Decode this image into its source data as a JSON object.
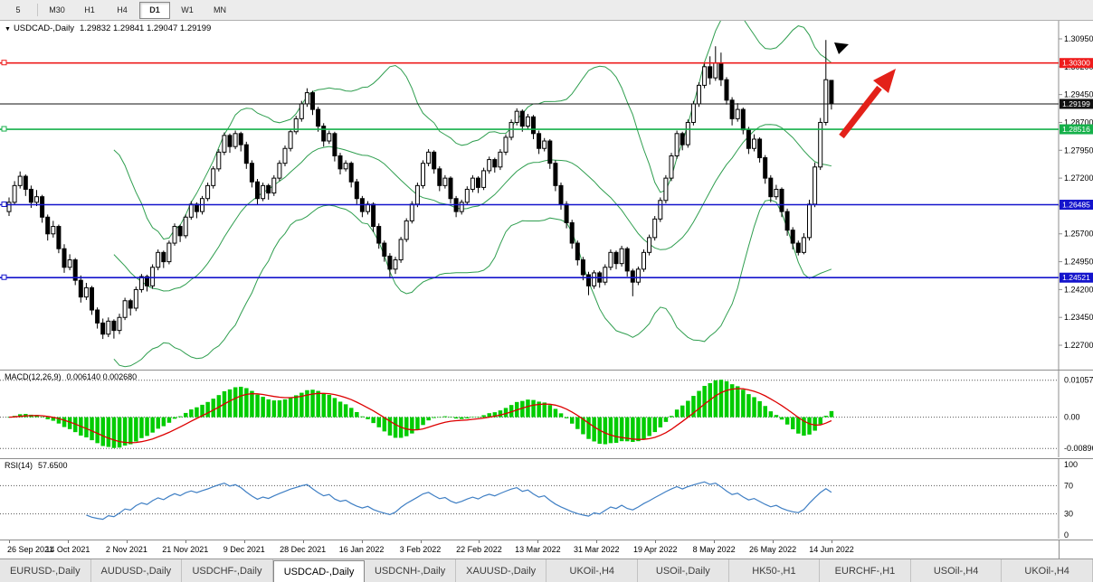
{
  "toolbar": {
    "periods": [
      {
        "label": "5",
        "active": false
      },
      {
        "label": "M30",
        "active": false
      },
      {
        "label": "H1",
        "active": false
      },
      {
        "label": "H4",
        "active": false
      },
      {
        "label": "D1",
        "active": true
      },
      {
        "label": "W1",
        "active": false
      },
      {
        "label": "MN",
        "active": false
      }
    ]
  },
  "chart": {
    "info": {
      "dropdown_icon": "▼",
      "title": "USDCAD-,Daily",
      "ohlc": "1.29832 1.29841 1.29047 1.29199"
    },
    "axis_labels": [
      "1.30950",
      "1.30200",
      "1.29450",
      "1.28700",
      "1.27950",
      "1.27200",
      "1.26450",
      "1.25700",
      "1.24950",
      "1.24200",
      "1.23450",
      "1.22700"
    ],
    "levels": [
      {
        "price": 1.303,
        "label": "1.30300",
        "color": "#ee1c1c"
      },
      {
        "price": 1.29199,
        "label": "1.29199",
        "color": "#111111"
      },
      {
        "price": 1.28516,
        "label": "1.28516",
        "color": "#15b04a"
      },
      {
        "price": 1.26485,
        "label": "1.26485",
        "color": "#1414cc"
      },
      {
        "price": 1.24521,
        "label": "1.24521",
        "color": "#1414cc"
      }
    ]
  },
  "chart_data": {
    "type": "candlestick",
    "symbol": "USDCAD",
    "timeframe": "Daily",
    "title": "USDCAD-,Daily",
    "y_range": [
      1.222,
      1.314
    ],
    "x_labels": [
      "26 Sep 2021",
      "14 Oct 2021",
      "2 Nov 2021",
      "21 Nov 2021",
      "9 Dec 2021",
      "28 Dec 2021",
      "16 Jan 2022",
      "3 Feb 2022",
      "22 Feb 2022",
      "13 Mar 2022",
      "31 Mar 2022",
      "19 Apr 2022",
      "8 May 2022",
      "26 May 2022",
      "14 Jun 2022"
    ],
    "ohlc": [
      [
        1.263,
        1.2668,
        1.2618,
        1.2655
      ],
      [
        1.2655,
        1.2712,
        1.2648,
        1.27
      ],
      [
        1.27,
        1.2738,
        1.2692,
        1.2725
      ],
      [
        1.2725,
        1.273,
        1.2672,
        1.269
      ],
      [
        1.269,
        1.27,
        1.264,
        1.2655
      ],
      [
        1.2655,
        1.2688,
        1.2645,
        1.267
      ],
      [
        1.267,
        1.2675,
        1.26,
        1.2615
      ],
      [
        1.2615,
        1.2622,
        1.2552,
        1.257
      ],
      [
        1.257,
        1.2605,
        1.256,
        1.259
      ],
      [
        1.259,
        1.2595,
        1.2518,
        1.253
      ],
      [
        1.253,
        1.2542,
        1.2465,
        1.248
      ],
      [
        1.248,
        1.2515,
        1.2472,
        1.25
      ],
      [
        1.25,
        1.2505,
        1.2432,
        1.2445
      ],
      [
        1.2445,
        1.2458,
        1.2385,
        1.24
      ],
      [
        1.24,
        1.2438,
        1.2392,
        1.2425
      ],
      [
        1.2425,
        1.243,
        1.2352,
        1.2365
      ],
      [
        1.2365,
        1.2372,
        1.2315,
        1.233
      ],
      [
        1.233,
        1.2342,
        1.2287,
        1.23
      ],
      [
        1.23,
        1.2345,
        1.2292,
        1.2335
      ],
      [
        1.2335,
        1.234,
        1.2288,
        1.231
      ],
      [
        1.231,
        1.2355,
        1.23,
        1.2345
      ],
      [
        1.2345,
        1.2398,
        1.2338,
        1.239
      ],
      [
        1.239,
        1.2395,
        1.235,
        1.237
      ],
      [
        1.237,
        1.2428,
        1.2362,
        1.242
      ],
      [
        1.242,
        1.2462,
        1.2412,
        1.2455
      ],
      [
        1.2455,
        1.246,
        1.2415,
        1.243
      ],
      [
        1.243,
        1.2488,
        1.2422,
        1.248
      ],
      [
        1.248,
        1.2528,
        1.2472,
        1.252
      ],
      [
        1.252,
        1.2525,
        1.2478,
        1.2495
      ],
      [
        1.2495,
        1.2552,
        1.2488,
        1.2545
      ],
      [
        1.2545,
        1.2598,
        1.2538,
        1.259
      ],
      [
        1.259,
        1.2595,
        1.2548,
        1.2565
      ],
      [
        1.2565,
        1.2622,
        1.2558,
        1.2615
      ],
      [
        1.2615,
        1.2658,
        1.2608,
        1.265
      ],
      [
        1.265,
        1.2655,
        1.2612,
        1.263
      ],
      [
        1.263,
        1.2672,
        1.2622,
        1.2665
      ],
      [
        1.2665,
        1.2708,
        1.2658,
        1.27
      ],
      [
        1.27,
        1.2752,
        1.2692,
        1.2745
      ],
      [
        1.2745,
        1.2798,
        1.2738,
        1.279
      ],
      [
        1.279,
        1.2843,
        1.2782,
        1.2835
      ],
      [
        1.2835,
        1.284,
        1.2788,
        1.2805
      ],
      [
        1.2805,
        1.2848,
        1.2798,
        1.284
      ],
      [
        1.284,
        1.2845,
        1.2792,
        1.281
      ],
      [
        1.281,
        1.2818,
        1.2745,
        1.276
      ],
      [
        1.276,
        1.2768,
        1.2695,
        1.271
      ],
      [
        1.271,
        1.2718,
        1.2648,
        1.2665
      ],
      [
        1.2665,
        1.2708,
        1.2658,
        1.27
      ],
      [
        1.27,
        1.2705,
        1.2662,
        1.268
      ],
      [
        1.268,
        1.2728,
        1.2672,
        1.272
      ],
      [
        1.272,
        1.2768,
        1.2712,
        1.276
      ],
      [
        1.276,
        1.2808,
        1.2752,
        1.28
      ],
      [
        1.28,
        1.2852,
        1.2792,
        1.2845
      ],
      [
        1.2845,
        1.2888,
        1.2838,
        1.288
      ],
      [
        1.288,
        1.2928,
        1.2872,
        1.292
      ],
      [
        1.292,
        1.2962,
        1.2912,
        1.295
      ],
      [
        1.295,
        1.2955,
        1.289,
        1.2905
      ],
      [
        1.2905,
        1.2912,
        1.2845,
        1.286
      ],
      [
        1.286,
        1.2868,
        1.2805,
        1.282
      ],
      [
        1.282,
        1.2848,
        1.2812,
        1.284
      ],
      [
        1.284,
        1.2845,
        1.2765,
        1.278
      ],
      [
        1.278,
        1.2788,
        1.273,
        1.2745
      ],
      [
        1.2745,
        1.2768,
        1.2738,
        1.276
      ],
      [
        1.276,
        1.2765,
        1.2695,
        1.271
      ],
      [
        1.271,
        1.2718,
        1.265,
        1.2665
      ],
      [
        1.2665,
        1.2672,
        1.2615,
        1.263
      ],
      [
        1.263,
        1.2658,
        1.2622,
        1.265
      ],
      [
        1.265,
        1.2655,
        1.2575,
        1.259
      ],
      [
        1.259,
        1.2598,
        1.253,
        1.2545
      ],
      [
        1.2545,
        1.2552,
        1.2495,
        1.251
      ],
      [
        1.251,
        1.2518,
        1.2452,
        1.2475
      ],
      [
        1.2475,
        1.2508,
        1.2462,
        1.25
      ],
      [
        1.25,
        1.2562,
        1.2492,
        1.2555
      ],
      [
        1.2555,
        1.2612,
        1.2548,
        1.2605
      ],
      [
        1.2605,
        1.2658,
        1.2598,
        1.265
      ],
      [
        1.265,
        1.2708,
        1.2642,
        1.27
      ],
      [
        1.27,
        1.2768,
        1.2692,
        1.276
      ],
      [
        1.276,
        1.2798,
        1.2752,
        1.279
      ],
      [
        1.279,
        1.2795,
        1.2732,
        1.2745
      ],
      [
        1.2745,
        1.2752,
        1.2685,
        1.27
      ],
      [
        1.27,
        1.2728,
        1.2692,
        1.272
      ],
      [
        1.272,
        1.2725,
        1.2652,
        1.2665
      ],
      [
        1.2665,
        1.2672,
        1.2615,
        1.263
      ],
      [
        1.263,
        1.2662,
        1.2622,
        1.2655
      ],
      [
        1.2655,
        1.2698,
        1.2648,
        1.269
      ],
      [
        1.269,
        1.2728,
        1.2682,
        1.272
      ],
      [
        1.272,
        1.2725,
        1.268,
        1.2695
      ],
      [
        1.2695,
        1.2748,
        1.2688,
        1.274
      ],
      [
        1.274,
        1.2778,
        1.2732,
        1.277
      ],
      [
        1.277,
        1.2775,
        1.2735,
        1.275
      ],
      [
        1.275,
        1.2798,
        1.2742,
        1.279
      ],
      [
        1.279,
        1.2838,
        1.2782,
        1.283
      ],
      [
        1.283,
        1.2878,
        1.2822,
        1.287
      ],
      [
        1.287,
        1.2908,
        1.2862,
        1.29
      ],
      [
        1.29,
        1.2905,
        1.2845,
        1.286
      ],
      [
        1.286,
        1.2893,
        1.2852,
        1.2885
      ],
      [
        1.2885,
        1.289,
        1.2825,
        1.284
      ],
      [
        1.284,
        1.2848,
        1.2785,
        1.28
      ],
      [
        1.28,
        1.2828,
        1.2792,
        1.282
      ],
      [
        1.282,
        1.2825,
        1.2745,
        1.276
      ],
      [
        1.276,
        1.2768,
        1.2685,
        1.27
      ],
      [
        1.27,
        1.2708,
        1.2635,
        1.265
      ],
      [
        1.265,
        1.2658,
        1.2585,
        1.26
      ],
      [
        1.26,
        1.2608,
        1.253,
        1.2545
      ],
      [
        1.2545,
        1.2552,
        1.2485,
        1.25
      ],
      [
        1.25,
        1.2508,
        1.2445,
        1.246
      ],
      [
        1.246,
        1.2468,
        1.2405,
        1.243
      ],
      [
        1.243,
        1.2472,
        1.2422,
        1.2465
      ],
      [
        1.2465,
        1.247,
        1.2425,
        1.244
      ],
      [
        1.244,
        1.2488,
        1.2432,
        1.248
      ],
      [
        1.248,
        1.2528,
        1.2472,
        1.252
      ],
      [
        1.252,
        1.2525,
        1.2475,
        1.249
      ],
      [
        1.249,
        1.2538,
        1.2482,
        1.253
      ],
      [
        1.253,
        1.2535,
        1.2455,
        1.247
      ],
      [
        1.247,
        1.2476,
        1.2402,
        1.244
      ],
      [
        1.244,
        1.2482,
        1.2432,
        1.2475
      ],
      [
        1.2475,
        1.2528,
        1.2468,
        1.252
      ],
      [
        1.252,
        1.2568,
        1.2512,
        1.256
      ],
      [
        1.256,
        1.2618,
        1.2552,
        1.261
      ],
      [
        1.261,
        1.2668,
        1.2602,
        1.266
      ],
      [
        1.266,
        1.2728,
        1.2652,
        1.272
      ],
      [
        1.272,
        1.2788,
        1.2712,
        1.278
      ],
      [
        1.278,
        1.2848,
        1.2772,
        1.284
      ],
      [
        1.284,
        1.2845,
        1.2795,
        1.281
      ],
      [
        1.281,
        1.2878,
        1.2802,
        1.287
      ],
      [
        1.287,
        1.2928,
        1.2862,
        1.292
      ],
      [
        1.292,
        1.2978,
        1.2912,
        1.297
      ],
      [
        1.297,
        1.3028,
        1.2962,
        1.302
      ],
      [
        1.302,
        1.3048,
        1.2972,
        1.299
      ],
      [
        1.299,
        1.3075,
        1.2982,
        1.303
      ],
      [
        1.303,
        1.3058,
        1.2968,
        1.2985
      ],
      [
        1.2985,
        1.2992,
        1.2918,
        1.293
      ],
      [
        1.293,
        1.2938,
        1.2862,
        1.288
      ],
      [
        1.288,
        1.2922,
        1.2872,
        1.2905
      ],
      [
        1.2905,
        1.291,
        1.2838,
        1.285
      ],
      [
        1.285,
        1.2858,
        1.2785,
        1.28
      ],
      [
        1.28,
        1.2838,
        1.2792,
        1.2825
      ],
      [
        1.2825,
        1.283,
        1.2762,
        1.2775
      ],
      [
        1.2775,
        1.2782,
        1.2705,
        1.272
      ],
      [
        1.272,
        1.2728,
        1.2655,
        1.267
      ],
      [
        1.267,
        1.2702,
        1.2662,
        1.269
      ],
      [
        1.269,
        1.2695,
        1.2615,
        1.263
      ],
      [
        1.263,
        1.2638,
        1.2565,
        1.258
      ],
      [
        1.258,
        1.2588,
        1.2528,
        1.2545
      ],
      [
        1.2545,
        1.2552,
        1.2512,
        1.252
      ],
      [
        1.252,
        1.2572,
        1.2515,
        1.256
      ],
      [
        1.256,
        1.2662,
        1.2552,
        1.265
      ],
      [
        1.265,
        1.2762,
        1.2642,
        1.275
      ],
      [
        1.275,
        1.2882,
        1.2742,
        1.287
      ],
      [
        1.287,
        1.3092,
        1.2862,
        1.2985
      ],
      [
        1.29832,
        1.29841,
        1.29047,
        1.29199
      ]
    ],
    "indicators": {
      "bollinger": {
        "period": 20,
        "deviation": 2,
        "color": "#2f9e4f"
      },
      "macd": {
        "label": "MACD(12,26,9)",
        "display_values": "0.006140 0.002680",
        "fast": 12,
        "slow": 26,
        "signal": 9,
        "scale_labels": [
          "0.010578",
          "0.00",
          "-0.00896"
        ],
        "histogram_color": "#00cc00",
        "signal_color": "#dd0000"
      },
      "rsi": {
        "label": "RSI(14)",
        "display_value": "57.6500",
        "period": 14,
        "scale_labels": [
          "100",
          "70",
          "30",
          "0"
        ],
        "guide_levels": [
          70,
          30
        ],
        "color": "#3f7fc4"
      }
    },
    "annotations": {
      "trend_arrow": {
        "color": "#e32119",
        "direction": "up-right"
      },
      "end_marker_color": "#000000"
    }
  },
  "tabs": [
    {
      "label": "EURUSD-,Daily",
      "active": false
    },
    {
      "label": "AUDUSD-,Daily",
      "active": false
    },
    {
      "label": "USDCHF-,Daily",
      "active": false
    },
    {
      "label": "USDCAD-,Daily",
      "active": true
    },
    {
      "label": "USDCNH-,Daily",
      "active": false
    },
    {
      "label": "XAUUSD-,Daily",
      "active": false
    },
    {
      "label": "UKOil-,H4",
      "active": false
    },
    {
      "label": "USOil-,Daily",
      "active": false
    },
    {
      "label": "HK50-,H1",
      "active": false
    },
    {
      "label": "EURCHF-,H1",
      "active": false
    },
    {
      "label": "USOil-,H4",
      "active": false
    },
    {
      "label": "UKOil-,H4",
      "active": false
    }
  ]
}
